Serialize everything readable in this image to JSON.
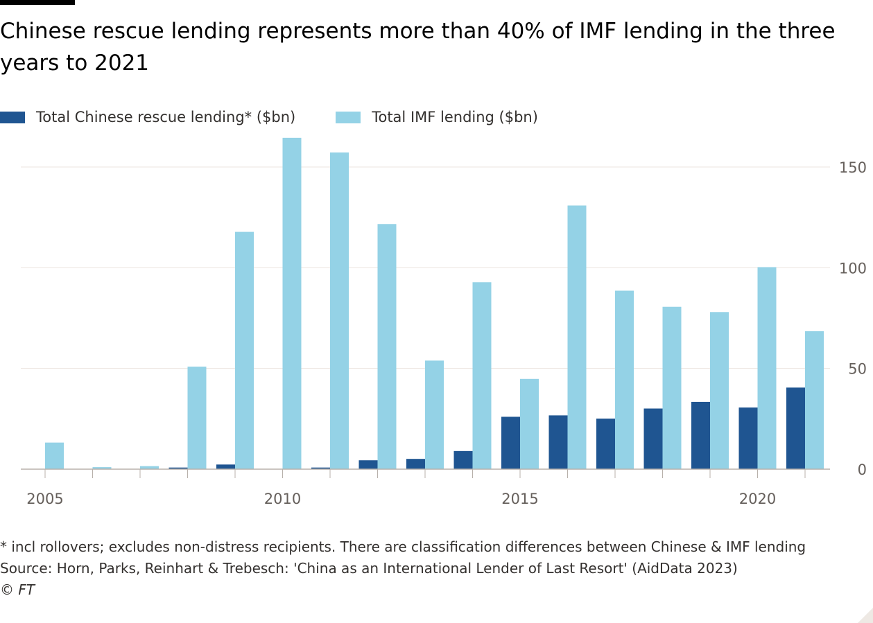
{
  "title": "Chinese rescue lending represents more than 40% of IMF lending in the three years to 2021",
  "legend": [
    {
      "label": "Total Chinese rescue lending* ($bn)",
      "color": "#1f5591"
    },
    {
      "label": "Total IMF lending ($bn)",
      "color": "#94d2e6"
    }
  ],
  "footnote": "* incl rollovers; excludes non-distress recipients. There are classification differences between Chinese & IMF lending",
  "source": "Source: Horn, Parks, Reinhart & Trebesch: 'China as an International Lender of Last Resort' (AidData 2023)",
  "copyright": "© FT",
  "chart_data": {
    "type": "bar",
    "categories": [
      2005,
      2006,
      2007,
      2008,
      2009,
      2010,
      2011,
      2012,
      2013,
      2014,
      2015,
      2016,
      2017,
      2018,
      2019,
      2020,
      2021
    ],
    "x_ticks": [
      "2005",
      "2010",
      "2015",
      "2020"
    ],
    "y_ticks": [
      "0",
      "50",
      "100",
      "150"
    ],
    "ylim": [
      0,
      165
    ],
    "grid": true,
    "y_axis_position": "right",
    "legend_position": "top-left",
    "series": [
      {
        "name": "Total Chinese rescue lending* ($bn)",
        "color": "#1f5591",
        "values": [
          0,
          0,
          0,
          0.8,
          2.3,
          0,
          0.8,
          4.4,
          5.1,
          9,
          26,
          26.7,
          25.1,
          30.1,
          33.4,
          30.6,
          40.5
        ]
      },
      {
        "name": "Total IMF lending ($bn)",
        "color": "#94d2e6",
        "values": [
          13.2,
          1,
          1.5,
          50.9,
          117.8,
          164.5,
          157.2,
          121.7,
          53.9,
          92.8,
          44.8,
          130.9,
          88.6,
          80.6,
          78,
          100.3,
          68.5
        ]
      }
    ]
  }
}
